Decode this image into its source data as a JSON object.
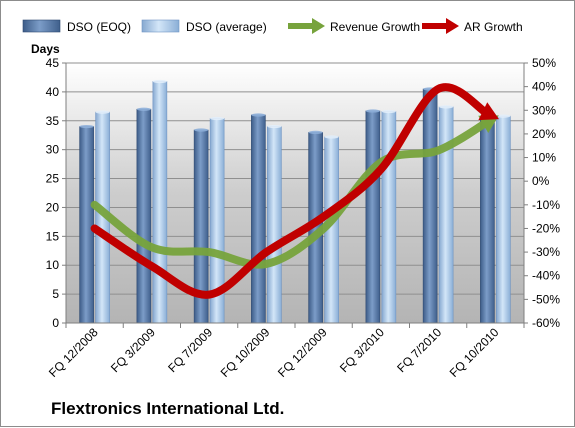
{
  "chart_data": {
    "type": "bar",
    "title": "Flextronics International Ltd.",
    "ylabel_left": "Days",
    "categories": [
      "FQ 12/2008",
      "FQ 3/2009",
      "FQ 7/2009",
      "FQ 10/2009",
      "FQ 12/2009",
      "FQ 3/2010",
      "FQ 7/2010",
      "FQ 10/2010"
    ],
    "left_axis": {
      "min": 0,
      "max": 45,
      "step": 5,
      "ticks": [
        "0",
        "5",
        "10",
        "15",
        "20",
        "25",
        "30",
        "35",
        "40",
        "45"
      ]
    },
    "right_axis": {
      "min": -60,
      "max": 50,
      "step": 10,
      "ticks": [
        "-60%",
        "-50%",
        "-40%",
        "-30%",
        "-20%",
        "-10%",
        "0%",
        "10%",
        "20%",
        "30%",
        "40%",
        "50%"
      ]
    },
    "bar_series": [
      {
        "name": "DSO (EOQ)",
        "axis": "left",
        "values": [
          34,
          37,
          33.4,
          36,
          33,
          36.7,
          40.5,
          35.5
        ],
        "color": "#5a7fb0"
      },
      {
        "name": "DSO (average)",
        "axis": "left",
        "values": [
          36.5,
          41.8,
          35.4,
          34,
          32.2,
          36.6,
          37.4,
          35.8
        ],
        "color": "#a9c8ea"
      }
    ],
    "line_series": [
      {
        "name": "Revenue Growth",
        "axis": "right",
        "values": [
          -10,
          -28,
          -30,
          -35,
          -20,
          8,
          13,
          27
        ],
        "color": "#77a33c"
      },
      {
        "name": "AR Growth",
        "axis": "right",
        "values": [
          -20,
          -36,
          -48,
          -30,
          -15,
          5,
          39,
          27
        ],
        "color": "#c00000"
      }
    ],
    "legend_position": "top",
    "grid": true
  }
}
